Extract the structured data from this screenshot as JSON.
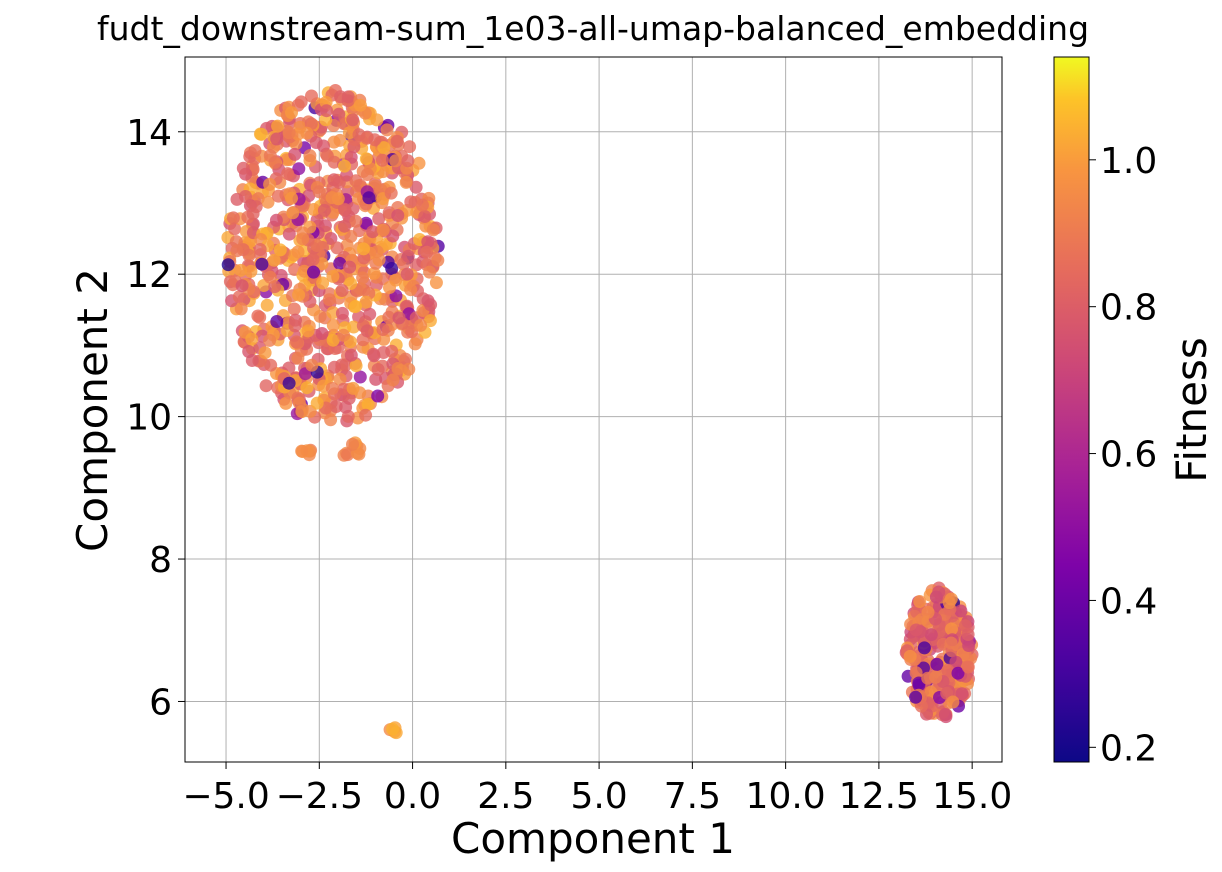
{
  "chart_data": {
    "type": "scatter",
    "title": "fudt_downstream-sum_1e03-all-umap-balanced_embedding",
    "xlabel": "Component 1",
    "ylabel": "Component 2",
    "xlim": [
      -6.1,
      15.8
    ],
    "ylim": [
      5.15,
      15.05
    ],
    "xticks": [
      -5.0,
      -2.5,
      0.0,
      2.5,
      5.0,
      7.5,
      10.0,
      12.5,
      15.0
    ],
    "xtick_labels": [
      "−5.0",
      "−2.5",
      "0.0",
      "2.5",
      "5.0",
      "7.5",
      "10.0",
      "12.5",
      "15.0"
    ],
    "yticks": [
      6,
      8,
      10,
      12,
      14
    ],
    "ytick_labels": [
      "6",
      "8",
      "10",
      "12",
      "14"
    ],
    "grid": true,
    "colorbar": {
      "label": "Fitness",
      "colormap": "plasma",
      "range": [
        0.18,
        1.14
      ],
      "ticks": [
        0.2,
        0.4,
        0.6,
        0.8,
        1.0
      ],
      "tick_labels": [
        "0.2",
        "0.4",
        "0.6",
        "0.8",
        "1.0"
      ]
    },
    "clusters": [
      {
        "region": "upper-left cluster",
        "x_range": [
          -5.0,
          0.7
        ],
        "y_range": [
          9.9,
          14.6
        ],
        "fitness_typical": [
          0.75,
          1.05
        ],
        "fitness_min": 0.22,
        "approx_points": 850
      },
      {
        "region": "small blob near (-2.8, 9.5)",
        "x_range": [
          -3.0,
          -2.6
        ],
        "y_range": [
          9.45,
          9.55
        ],
        "fitness_typical": [
          0.9,
          1.0
        ],
        "approx_points": 6
      },
      {
        "region": "small blob near (-1.6, 9.5)",
        "x_range": [
          -1.9,
          -1.3
        ],
        "y_range": [
          9.4,
          9.65
        ],
        "fitness_typical": [
          0.85,
          1.0
        ],
        "approx_points": 10
      },
      {
        "region": "small blob near (-0.5, 5.6)",
        "x_range": [
          -0.7,
          -0.3
        ],
        "y_range": [
          5.55,
          5.7
        ],
        "fitness_typical": [
          0.95,
          1.05
        ],
        "approx_points": 5
      },
      {
        "region": "right cluster",
        "x_range": [
          13.2,
          15.0
        ],
        "y_range": [
          5.75,
          7.6
        ],
        "fitness_typical": [
          0.7,
          1.0
        ],
        "fitness_min": 0.22,
        "approx_points": 280
      }
    ]
  }
}
